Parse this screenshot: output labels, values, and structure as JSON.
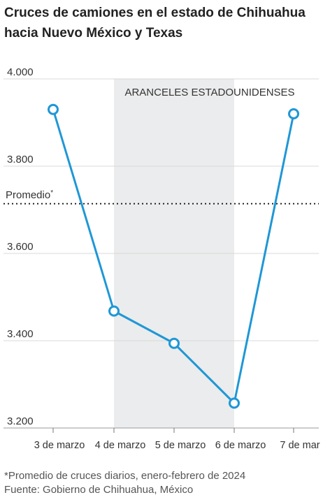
{
  "title": "Cruces de camiones en el estado de Chihuahua hacia Nuevo México y Texas",
  "footnote": "*Promedio de cruces diarios, enero-febrero de 2024",
  "source": "Fuente: Gobierno de Chihuahua, México",
  "chart_data": {
    "type": "line",
    "categories": [
      "3 de marzo",
      "4 de marzo",
      "5 de marzo",
      "6 de marzo",
      "7 de mar"
    ],
    "values": [
      3930,
      3468,
      3394,
      3257,
      3920
    ],
    "ylim": [
      3200,
      4000
    ],
    "yticks": [
      3200,
      3400,
      3600,
      3800,
      4000
    ],
    "ytick_labels": [
      "3.200",
      "3.400",
      "3.600",
      "3.800",
      "4.000"
    ],
    "grid": true,
    "average": {
      "label": "Promedio",
      "marker": "*",
      "value": 3714
    },
    "shaded_range": {
      "from": "4 de marzo",
      "to": "6 de marzo",
      "label": "ARANCELES ESTADOUNIDENSES"
    },
    "colors": {
      "line": "#1f97d6",
      "band": "#ebeced",
      "grid": "#d8d8d8",
      "average": "#222222"
    }
  }
}
